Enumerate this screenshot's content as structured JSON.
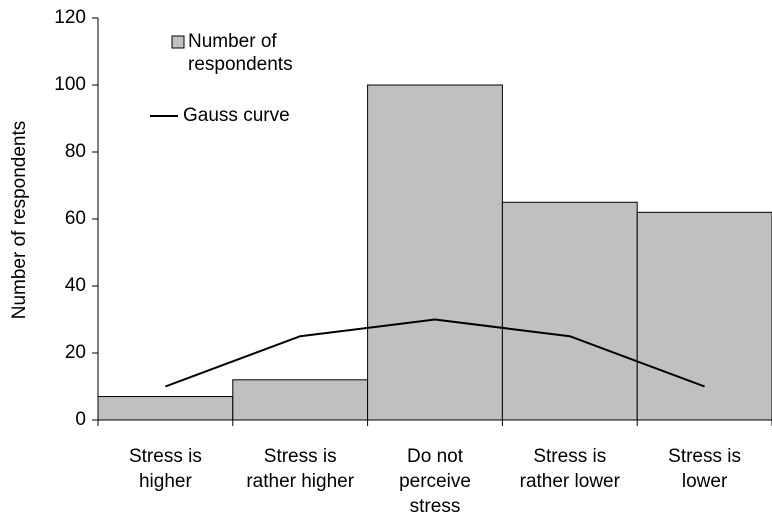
{
  "chart_data": {
    "type": "bar",
    "y_label": "Number of respondents",
    "categories": [
      "Stress is higher",
      "Stress is rather higher",
      "Do not perceive stress",
      "Stress is rather lower",
      "Stress is lower"
    ],
    "series": [
      {
        "name": "Number of respondents",
        "type": "bar",
        "color": "#c0c0c0",
        "values": [
          7,
          12,
          100,
          65,
          62
        ]
      },
      {
        "name": "Gauss curve",
        "type": "line",
        "color": "#000000",
        "values": [
          10,
          25,
          30,
          25,
          10
        ]
      }
    ],
    "ylim": [
      0,
      120
    ],
    "yticks": [
      0,
      20,
      40,
      60,
      80,
      100,
      120
    ],
    "grid": false,
    "legend": "upper left"
  }
}
